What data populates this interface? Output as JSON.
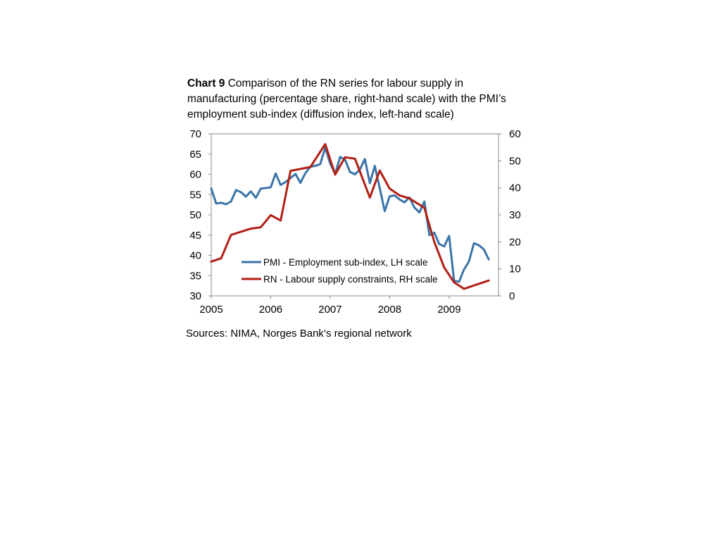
{
  "caption": {
    "label": "Chart 9",
    "text": "Comparison of the RN series for labour supply in manufacturing (percentage share, right-hand scale) with the PMI’s employment sub-index (diffusion index, left-hand scale)"
  },
  "source": "Sources: NIMA, Norges Bank’s regional network",
  "colors": {
    "pmi": "#3a74a8",
    "rn": "#b21e14",
    "axis": "#888888"
  },
  "chart_data": {
    "type": "line",
    "grid": false,
    "legend_position": "inside-bottom-left",
    "left_axis": {
      "ylim": [
        30,
        70
      ],
      "ticks": [
        "70",
        "65",
        "60",
        "55",
        "50",
        "45",
        "40",
        "35",
        "30"
      ]
    },
    "right_axis": {
      "ylim": [
        0,
        60
      ],
      "ticks": [
        "60",
        "50",
        "40",
        "30",
        "20",
        "10",
        "0"
      ]
    },
    "x_axis": {
      "xlim": [
        2005.0,
        2009.83
      ],
      "ticks": [
        2005,
        2006,
        2007,
        2008,
        2009
      ],
      "tick_labels": [
        "2005",
        "2006",
        "2007",
        "2008",
        "2009"
      ]
    },
    "series": [
      {
        "name": "PMI - Employment sub-index, LH scale",
        "axis": "left",
        "color": "#3a74a8",
        "x": [
          2005.0,
          2005.083,
          2005.167,
          2005.25,
          2005.333,
          2005.417,
          2005.5,
          2005.583,
          2005.667,
          2005.75,
          2005.833,
          2005.917,
          2006.0,
          2006.083,
          2006.167,
          2006.25,
          2006.333,
          2006.417,
          2006.5,
          2006.583,
          2006.667,
          2006.75,
          2006.833,
          2006.917,
          2007.0,
          2007.083,
          2007.167,
          2007.25,
          2007.333,
          2007.417,
          2007.5,
          2007.583,
          2007.667,
          2007.75,
          2007.833,
          2007.917,
          2008.0,
          2008.083,
          2008.167,
          2008.25,
          2008.333,
          2008.417,
          2008.5,
          2008.583,
          2008.667,
          2008.75,
          2008.833,
          2008.917,
          2009.0,
          2009.083,
          2009.167,
          2009.25,
          2009.333,
          2009.417,
          2009.5,
          2009.583,
          2009.667
        ],
        "y": [
          56.5,
          52.8,
          53.0,
          52.6,
          53.3,
          56.1,
          55.6,
          54.5,
          55.8,
          54.2,
          56.5,
          56.6,
          56.8,
          60.2,
          57.4,
          58.1,
          59.1,
          60.1,
          57.9,
          60.3,
          61.9,
          62.1,
          62.5,
          66.6,
          62.7,
          60.1,
          64.3,
          63.6,
          60.6,
          60.0,
          61.2,
          63.8,
          57.8,
          62.1,
          56.6,
          50.9,
          54.6,
          54.8,
          53.8,
          53.1,
          54.3,
          51.8,
          50.6,
          53.3,
          45.0,
          45.6,
          42.8,
          42.2,
          44.8,
          33.7,
          33.5,
          36.5,
          38.5,
          43.0,
          42.5,
          41.5,
          39.0
        ]
      },
      {
        "name": "RN - Labour supply constraints, RH scale",
        "axis": "right",
        "color": "#b21e14",
        "x": [
          2005.0,
          2005.167,
          2005.333,
          2005.667,
          2005.833,
          2006.0,
          2006.167,
          2006.333,
          2006.667,
          2006.917,
          2007.083,
          2007.25,
          2007.417,
          2007.667,
          2007.833,
          2008.0,
          2008.167,
          2008.333,
          2008.583,
          2008.75,
          2008.917,
          2009.083,
          2009.25,
          2009.667
        ],
        "y": [
          12.7,
          13.9,
          22.6,
          24.9,
          25.4,
          29.9,
          27.9,
          46.3,
          47.7,
          56.2,
          44.9,
          51.3,
          50.8,
          36.4,
          46.4,
          39.7,
          37.2,
          36.1,
          32.6,
          20.0,
          10.5,
          5.0,
          2.6,
          5.7
        ]
      }
    ]
  }
}
